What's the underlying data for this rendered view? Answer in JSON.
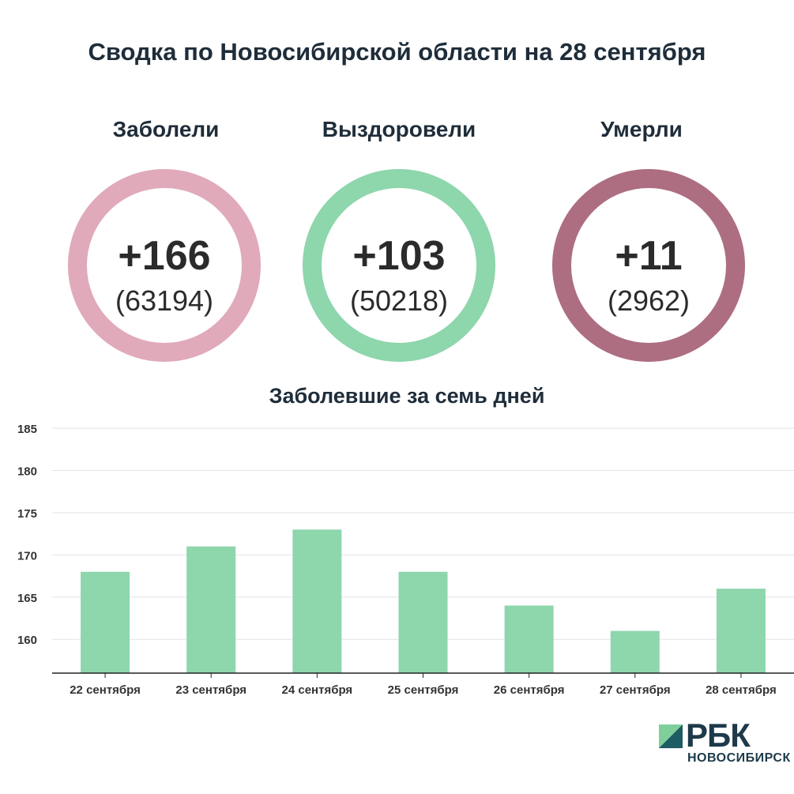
{
  "header": {
    "title": "Сводка по Новосибирской области на 28 сентября"
  },
  "stats": [
    {
      "label": "Заболели",
      "delta": "+166",
      "total": "(63194)",
      "color": "#e0aabb"
    },
    {
      "label": "Выздоровели",
      "delta": "+103",
      "total": "(50218)",
      "color": "#8ed6ac"
    },
    {
      "label": "Умерли",
      "delta": "+11",
      "total": "(2962)",
      "color": "#ad6e81"
    }
  ],
  "chart_data": {
    "type": "bar",
    "title": "Заболевшие за семь дней",
    "categories": [
      "22 сентября",
      "23 сентября",
      "24 сентября",
      "25 сентября",
      "26 сентября",
      "27 сентября",
      "28 сентября"
    ],
    "values": [
      168,
      171,
      173,
      168,
      164,
      161,
      166
    ],
    "ylim": [
      156,
      185
    ],
    "yticks": [
      160,
      165,
      170,
      175,
      180,
      185
    ],
    "bar_color": "#8ed6ac",
    "grid": true
  },
  "logo": {
    "brand": "РБК",
    "sub": "НОВОСИБИРСК"
  }
}
